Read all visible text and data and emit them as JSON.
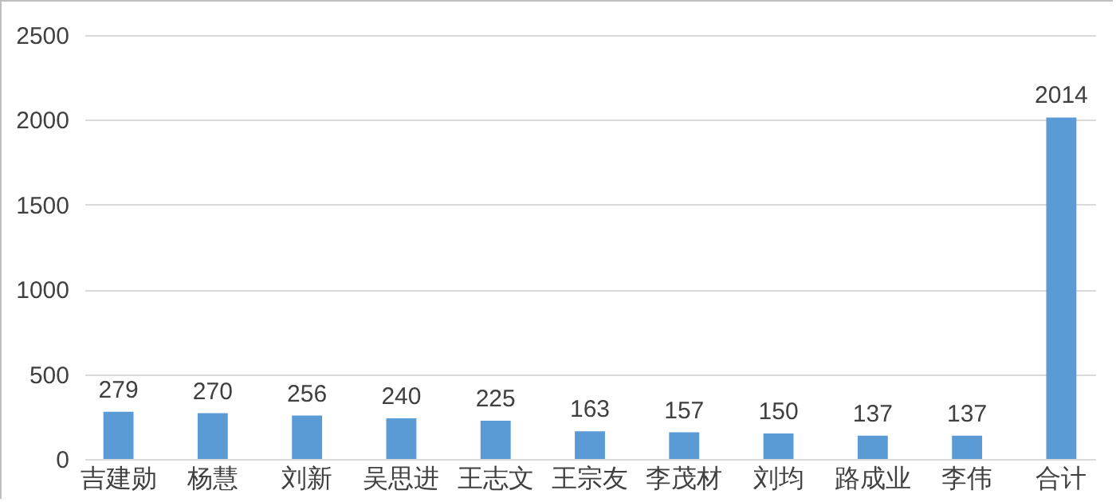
{
  "chart_data": {
    "type": "bar",
    "categories": [
      "吉建勋",
      "杨慧",
      "刘新",
      "吴思进",
      "王志文",
      "王宗友",
      "李茂材",
      "刘均",
      "路成业",
      "李伟",
      "合计"
    ],
    "values": [
      279,
      270,
      256,
      240,
      225,
      163,
      157,
      150,
      137,
      137,
      2014
    ],
    "color": "#5b9bd5",
    "ylim": [
      0,
      2500
    ],
    "yticks": [
      0,
      500,
      1000,
      1500,
      2000,
      2500
    ],
    "grid": "y",
    "data_labels": true
  }
}
